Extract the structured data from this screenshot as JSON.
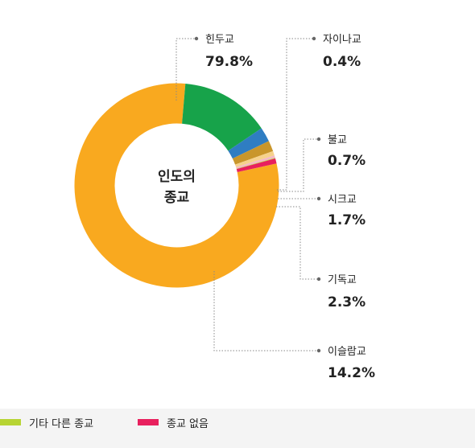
{
  "chart_data": {
    "type": "pie",
    "donut": true,
    "center_label": [
      "인도의",
      "종교"
    ],
    "slices": [
      {
        "label": "힌두교",
        "value": 79.8,
        "display": "79.8%",
        "color": "#F9A91F"
      },
      {
        "label": "이슬람교",
        "value": 14.2,
        "display": "14.2%",
        "color": "#17A34A"
      },
      {
        "label": "기독교",
        "value": 2.3,
        "display": "2.3%",
        "color": "#2F7DC2"
      },
      {
        "label": "시크교",
        "value": 1.7,
        "display": "1.7%",
        "color": "#C9962B"
      },
      {
        "label": "불교",
        "value": 0.7,
        "display": "0.7%",
        "color": "#F6D28C"
      },
      {
        "label": "자이나교",
        "value": 0.4,
        "display": "0.4%",
        "color": "#F3B9C7"
      },
      {
        "label": "기타 다른 종교",
        "value": 0.1,
        "color": "#B7D433"
      },
      {
        "label": "종교 없음",
        "value": 0.8,
        "color": "#E8205E"
      }
    ],
    "legend": [
      {
        "label": "기타 다른 종교",
        "color": "#B7D433"
      },
      {
        "label": "종교 없음",
        "color": "#E8205E"
      }
    ],
    "legend_position": "bottom"
  }
}
